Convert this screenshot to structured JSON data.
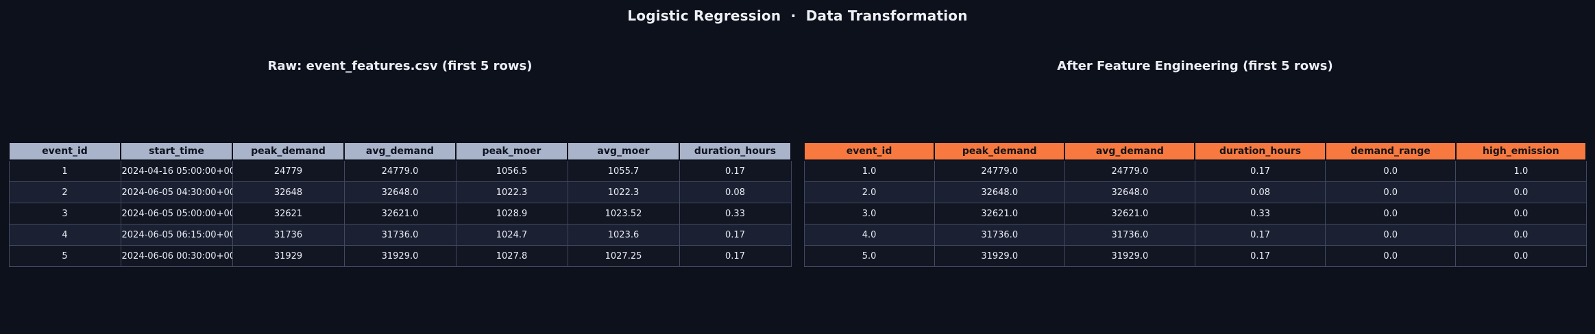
{
  "page": {
    "title": "Logistic Regression  ·  Data Transformation",
    "background_color": "#0d111c"
  },
  "chart_data": [
    {
      "type": "table",
      "title": "Raw: event_features.csv (first 5 rows)",
      "header_color": "#a9b3c9",
      "header_text_color": "#0e1320",
      "columns": [
        "event_id",
        "start_time",
        "peak_demand",
        "avg_demand",
        "peak_moer",
        "avg_moer",
        "duration_hours"
      ],
      "rows": [
        [
          "1",
          "2024-04-16 05:00:00+00",
          "24779",
          "24779.0",
          "1056.5",
          "1055.7",
          "0.17"
        ],
        [
          "2",
          "2024-06-05 04:30:00+00",
          "32648",
          "32648.0",
          "1022.3",
          "1022.3",
          "0.08"
        ],
        [
          "3",
          "2024-06-05 05:00:00+00",
          "32621",
          "32621.0",
          "1028.9",
          "1023.52",
          "0.33"
        ],
        [
          "4",
          "2024-06-05 06:15:00+00",
          "31736",
          "31736.0",
          "1024.7",
          "1023.6",
          "0.17"
        ],
        [
          "5",
          "2024-06-06 00:30:00+00",
          "31929",
          "31929.0",
          "1027.8",
          "1027.25",
          "0.17"
        ]
      ]
    },
    {
      "type": "table",
      "title": "After Feature Engineering (first 5 rows)",
      "header_color": "#f8793f",
      "header_text_color": "#141414",
      "columns": [
        "event_id",
        "peak_demand",
        "avg_demand",
        "duration_hours",
        "demand_range",
        "high_emission"
      ],
      "rows": [
        [
          "1.0",
          "24779.0",
          "24779.0",
          "0.17",
          "0.0",
          "1.0"
        ],
        [
          "2.0",
          "32648.0",
          "32648.0",
          "0.08",
          "0.0",
          "0.0"
        ],
        [
          "3.0",
          "32621.0",
          "32621.0",
          "0.33",
          "0.0",
          "0.0"
        ],
        [
          "4.0",
          "31736.0",
          "31736.0",
          "0.17",
          "0.0",
          "0.0"
        ],
        [
          "5.0",
          "31929.0",
          "31929.0",
          "0.17",
          "0.0",
          "0.0"
        ]
      ]
    }
  ]
}
